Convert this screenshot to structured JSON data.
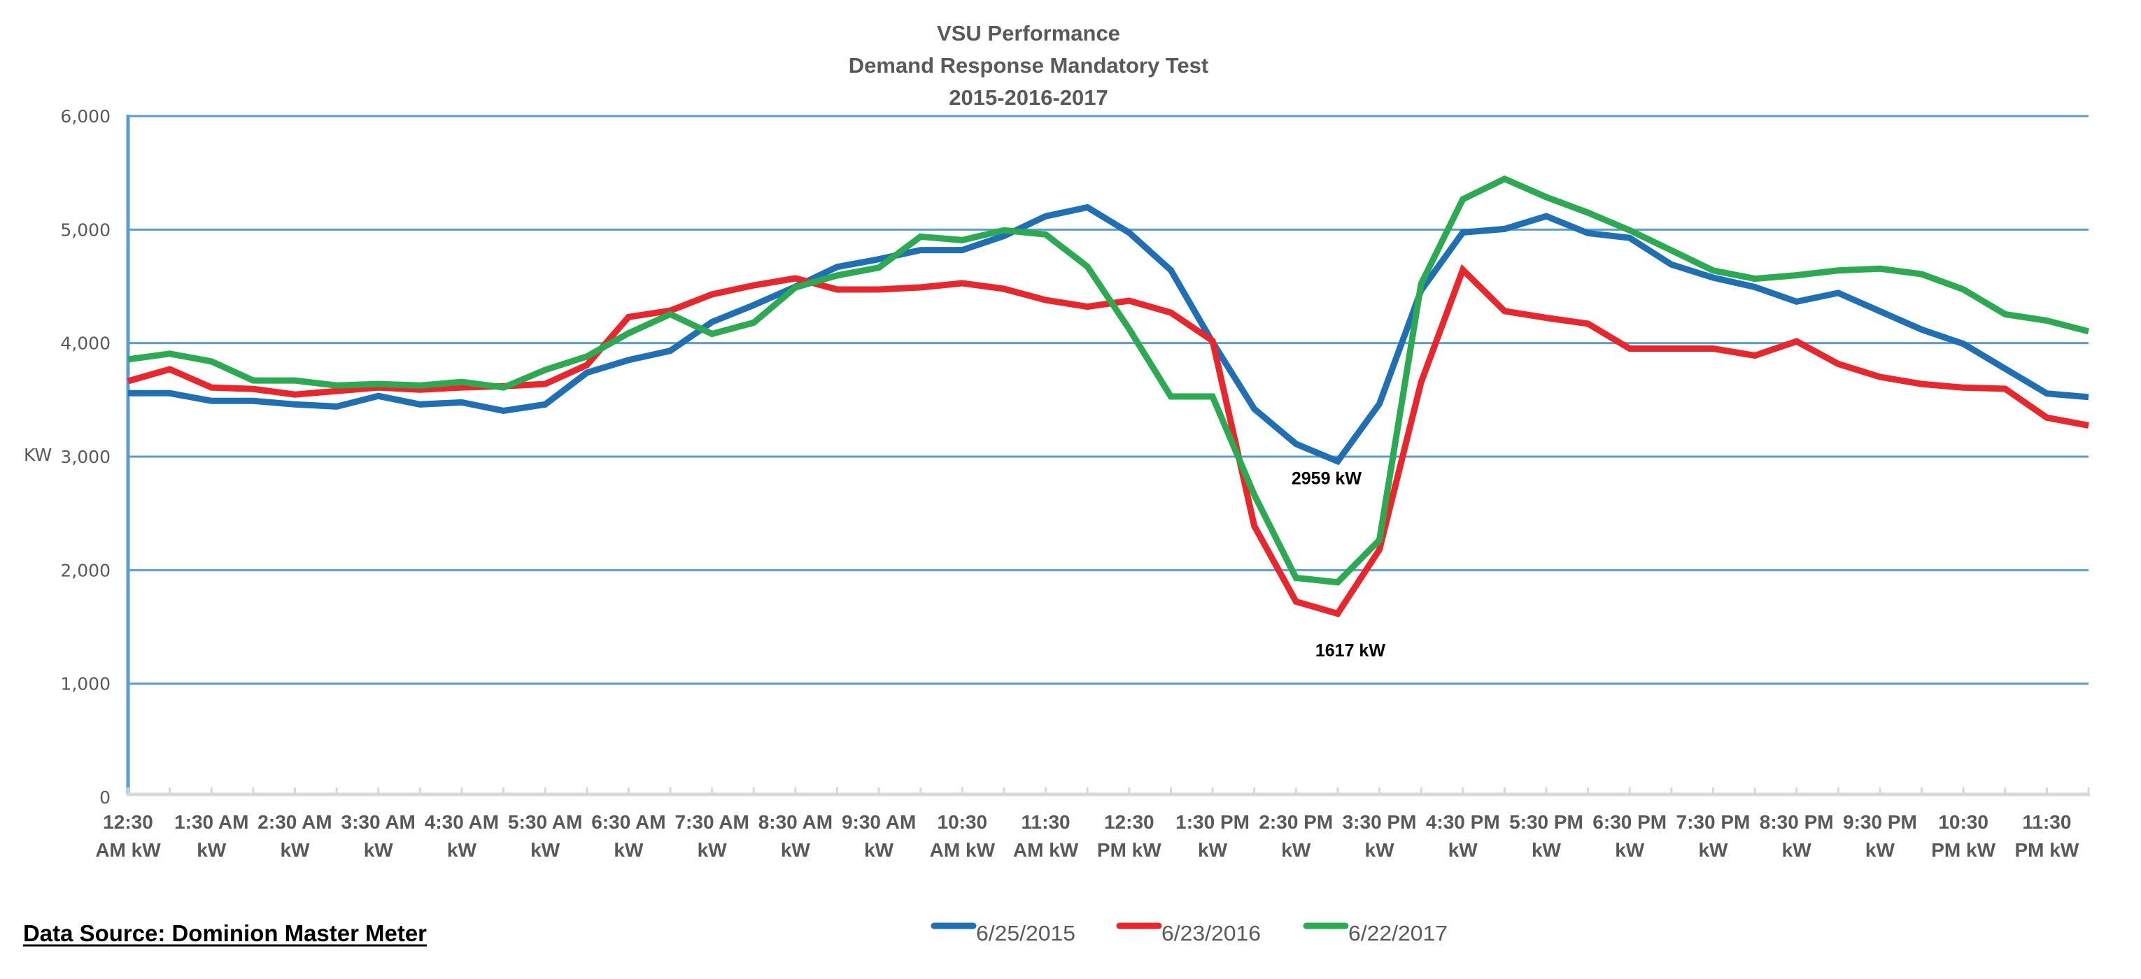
{
  "chart_data": {
    "type": "line",
    "title": [
      "VSU Performance",
      "Demand Response Mandatory Test",
      "2015-2016-2017"
    ],
    "ylabel": "KW",
    "xlabel": "",
    "ylim": [
      0,
      6000
    ],
    "yticks": [
      0,
      1000,
      2000,
      3000,
      4000,
      5000,
      6000
    ],
    "ytick_labels": [
      "0",
      "1,000",
      "2,000",
      "3,000",
      "4,000",
      "5,000",
      "6,000"
    ],
    "grid": true,
    "point_count": 48,
    "xtick_labels": [
      [
        "12:30",
        "AM kW"
      ],
      [
        "1:30 AM",
        "kW"
      ],
      [
        "2:30 AM",
        "kW"
      ],
      [
        "3:30 AM",
        "kW"
      ],
      [
        "4:30 AM",
        "kW"
      ],
      [
        "5:30 AM",
        "kW"
      ],
      [
        "6:30 AM",
        "kW"
      ],
      [
        "7:30 AM",
        "kW"
      ],
      [
        "8:30 AM",
        "kW"
      ],
      [
        "9:30 AM",
        "kW"
      ],
      [
        "10:30",
        "AM kW"
      ],
      [
        "11:30",
        "AM kW"
      ],
      [
        "12:30",
        "PM kW"
      ],
      [
        "1:30 PM",
        "kW"
      ],
      [
        "2:30 PM",
        "kW"
      ],
      [
        "3:30 PM",
        "kW"
      ],
      [
        "4:30 PM",
        "kW"
      ],
      [
        "5:30 PM",
        "kW"
      ],
      [
        "6:30 PM",
        "kW"
      ],
      [
        "7:30 PM",
        "kW"
      ],
      [
        "8:30 PM",
        "kW"
      ],
      [
        "9:30 PM",
        "kW"
      ],
      [
        "10:30",
        "PM kW"
      ],
      [
        "11:30",
        "PM kW"
      ]
    ],
    "series": [
      {
        "name": "6/25/2015",
        "color": "#1F6FB5",
        "values": [
          3559,
          3559,
          3491,
          3491,
          3460,
          3441,
          3534,
          3460,
          3478,
          3404,
          3460,
          3739,
          3851,
          3932,
          4186,
          4335,
          4497,
          4671,
          4739,
          4820,
          4820,
          4944,
          5118,
          5196,
          4974,
          4642,
          4008,
          3420,
          3112,
          2959,
          3465,
          4465,
          4975,
          5006,
          5118,
          4969,
          4927,
          4692,
          4577,
          4494,
          4365,
          4442,
          4281,
          4119,
          3994,
          3775,
          3556,
          3525
        ]
      },
      {
        "name": "6/23/2016",
        "color": "#E8262C",
        "values": [
          3665,
          3770,
          3609,
          3596,
          3547,
          3578,
          3609,
          3590,
          3609,
          3621,
          3640,
          3807,
          4230,
          4286,
          4429,
          4509,
          4571,
          4472,
          4472,
          4491,
          4528,
          4478,
          4379,
          4321,
          4373,
          4269,
          4021,
          2389,
          1723,
          1617,
          2180,
          3655,
          4646,
          4282,
          4223,
          4171,
          3952,
          3952,
          3952,
          3890,
          4015,
          3817,
          3702,
          3640,
          3608,
          3598,
          3344,
          3275
        ]
      },
      {
        "name": "6/22/2017",
        "color": "#2BAA52",
        "values": [
          3857,
          3907,
          3839,
          3671,
          3671,
          3627,
          3640,
          3627,
          3658,
          3609,
          3764,
          3882,
          4087,
          4255,
          4081,
          4180,
          4491,
          4596,
          4665,
          4938,
          4907,
          4994,
          4957,
          4674,
          4125,
          3530,
          3530,
          2663,
          1932,
          1893,
          2266,
          4522,
          5267,
          5447,
          5286,
          5149,
          4994,
          4817,
          4640,
          4567,
          4598,
          4640,
          4656,
          4608,
          4473,
          4254,
          4198,
          4104
        ]
      }
    ],
    "annotations": [
      {
        "text": "2959 kW",
        "series": 0,
        "index": 29
      },
      {
        "text": "1617 kW",
        "series": 1,
        "index": 29
      }
    ],
    "legend_position": "bottom"
  },
  "footer": {
    "data_source": "Data Source: Dominion Master Meter"
  }
}
